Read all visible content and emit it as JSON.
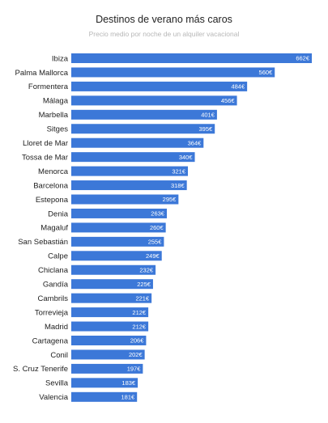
{
  "chart_data": {
    "type": "bar",
    "orientation": "horizontal",
    "title": "Destinos de verano más caros",
    "subtitle": "Precio medio por noche de un alquiler vacacional",
    "categories": [
      "Ibiza",
      "Palma Mallorca",
      "Formentera",
      "Málaga",
      "Marbella",
      "Sitges",
      "Lloret de Mar",
      "Tossa de Mar",
      "Menorca",
      "Barcelona",
      "Estepona",
      "Denia",
      "Magaluf",
      "San Sebastián",
      "Calpe",
      "Chiclana",
      "Gandía",
      "Cambrils",
      "Torrevieja",
      "Madrid",
      "Cartagena",
      "Conil",
      "S. Cruz Tenerife",
      "Sevilla",
      "Valencia"
    ],
    "values": [
      662,
      560,
      484,
      456,
      401,
      395,
      364,
      340,
      321,
      318,
      295,
      263,
      260,
      255,
      249,
      232,
      225,
      221,
      212,
      212,
      206,
      202,
      197,
      183,
      181
    ],
    "value_labels": [
      "662€",
      "560€",
      "484€",
      "456€",
      "401€",
      "395€",
      "364€",
      "340€",
      "321€",
      "318€",
      "295€",
      "263€",
      "260€",
      "255€",
      "249€",
      "232€",
      "225€",
      "221€",
      "212€",
      "212€",
      "206€",
      "202€",
      "197€",
      "183€",
      "181€"
    ],
    "xlim": [
      0,
      662
    ],
    "grid": false,
    "bar_color": "#3c78d8"
  }
}
